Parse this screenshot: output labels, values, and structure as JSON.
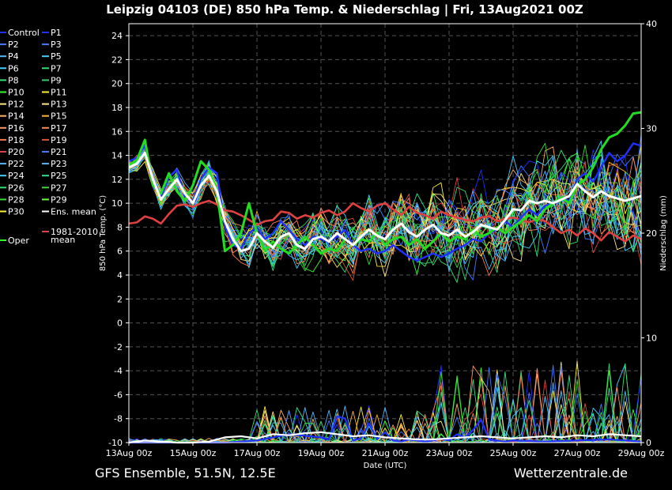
{
  "chart_data": {
    "type": "line",
    "title": "Leipzig 04103 (DE)  850 hPa Temp. & Niederschlag | Fri, 13Aug2021 00Z",
    "xlabel": "Date (UTC)",
    "ylabel": "850 hPa Temp. (°C)",
    "y2label": "Niederschlag (mm)",
    "ylim": [
      -10,
      25
    ],
    "y2lim": [
      0,
      40
    ],
    "xlim": [
      0,
      384
    ],
    "y_ticks": [
      -10,
      -8,
      -6,
      -4,
      -2,
      0,
      2,
      4,
      6,
      8,
      10,
      12,
      14,
      16,
      18,
      20,
      22,
      24
    ],
    "y2_ticks": [
      0,
      10,
      20,
      30,
      40
    ],
    "x_ticks": [
      {
        "hour": 0,
        "label": "13Aug 00z"
      },
      {
        "hour": 48,
        "label": "15Aug 00z"
      },
      {
        "hour": 96,
        "label": "17Aug 00z"
      },
      {
        "hour": 144,
        "label": "19Aug 00z"
      },
      {
        "hour": 192,
        "label": "21Aug 00z"
      },
      {
        "hour": 240,
        "label": "23Aug 00z"
      },
      {
        "hour": 288,
        "label": "25Aug 00z"
      },
      {
        "hour": 336,
        "label": "27Aug 00z"
      },
      {
        "hour": 384,
        "label": "29Aug 00z"
      }
    ],
    "grid": true,
    "legend_position": "left",
    "legend_col1": [
      {
        "label": "Control",
        "color": "#2030ff"
      },
      {
        "label": "P2",
        "color": "#3f7bff"
      },
      {
        "label": "P4",
        "color": "#4fb8ff"
      },
      {
        "label": "P6",
        "color": "#3fd0ff"
      },
      {
        "label": "P8",
        "color": "#30e070"
      },
      {
        "label": "P10",
        "color": "#33ff33"
      },
      {
        "label": "P12",
        "color": "#ffe680"
      },
      {
        "label": "P14",
        "color": "#ffb060"
      },
      {
        "label": "P16",
        "color": "#ff9966"
      },
      {
        "label": "P18",
        "color": "#ff7744"
      },
      {
        "label": "P20",
        "color": "#e04040"
      },
      {
        "label": "P22",
        "color": "#4fb8ff"
      },
      {
        "label": "P24",
        "color": "#3fd0ff"
      },
      {
        "label": "P26",
        "color": "#30e070"
      },
      {
        "label": "P28",
        "color": "#33dd33"
      },
      {
        "label": "P30",
        "color": "#ffee33"
      }
    ],
    "legend_col2": [
      {
        "label": "P1",
        "color": "#2030ff"
      },
      {
        "label": "P3",
        "color": "#3f7bff"
      },
      {
        "label": "P5",
        "color": "#3fd0ff"
      },
      {
        "label": "P7",
        "color": "#30e070"
      },
      {
        "label": "P9",
        "color": "#33cc66"
      },
      {
        "label": "P11",
        "color": "#ffee33"
      },
      {
        "label": "P13",
        "color": "#ffe680"
      },
      {
        "label": "P15",
        "color": "#ffb030"
      },
      {
        "label": "P17",
        "color": "#ff8855"
      },
      {
        "label": "P19",
        "color": "#e05030"
      },
      {
        "label": "P21",
        "color": "#3f7bff"
      },
      {
        "label": "P23",
        "color": "#4fb8ff"
      },
      {
        "label": "P25",
        "color": "#30e090"
      },
      {
        "label": "P27",
        "color": "#33dd33"
      },
      {
        "label": "P29",
        "color": "#66ff33"
      },
      {
        "label": "Ens. mean",
        "color": "#ffffff"
      }
    ],
    "legend_extra": [
      {
        "label": "Oper",
        "color": "#33ff33"
      },
      {
        "label": "1981-2010",
        "label2": "mean",
        "color": "#e04040"
      }
    ],
    "series_oper": {
      "name": "Oper",
      "color": "#22dd22",
      "x": [
        0,
        6,
        12,
        18,
        24,
        30,
        36,
        42,
        48,
        54,
        60,
        66,
        72,
        78,
        84,
        90,
        96,
        102,
        108,
        114,
        120,
        126,
        132,
        138,
        144,
        150,
        156,
        162,
        168,
        174,
        180,
        186,
        192,
        198,
        204,
        210,
        216,
        222,
        228,
        234,
        240,
        246,
        252,
        258,
        264,
        270,
        276,
        282,
        288,
        294,
        300,
        306,
        312,
        318,
        324,
        330,
        336,
        342,
        348,
        354,
        360,
        366,
        372,
        378,
        384
      ],
      "y": [
        13.2,
        13.6,
        15.3,
        11.5,
        10.8,
        12.5,
        11.0,
        10.2,
        11.5,
        13.5,
        12.8,
        11.0,
        6.0,
        6.5,
        7.5,
        10.0,
        7.5,
        6.0,
        6.8,
        6.2,
        5.8,
        6.5,
        7.2,
        6.5,
        5.8,
        6.2,
        6.0,
        7.0,
        6.5,
        7.0,
        6.8,
        7.5,
        6.5,
        7.0,
        7.2,
        6.5,
        7.0,
        6.2,
        6.8,
        7.5,
        6.8,
        7.2,
        7.0,
        7.8,
        7.2,
        7.5,
        8.0,
        7.5,
        8.0,
        8.5,
        9.0,
        8.5,
        9.5,
        10.0,
        10.5,
        10.0,
        11.5,
        12.0,
        13.0,
        14.5,
        15.5,
        15.8,
        16.5,
        17.5,
        17.6
      ]
    },
    "series_ens_mean": {
      "name": "Ens. mean",
      "color": "#ffffff",
      "x": [
        0,
        6,
        12,
        18,
        24,
        30,
        36,
        42,
        48,
        54,
        60,
        66,
        72,
        78,
        84,
        90,
        96,
        102,
        108,
        114,
        120,
        126,
        132,
        138,
        144,
        150,
        156,
        162,
        168,
        174,
        180,
        186,
        192,
        198,
        204,
        210,
        216,
        222,
        228,
        234,
        240,
        246,
        252,
        258,
        264,
        270,
        276,
        282,
        288,
        294,
        300,
        306,
        312,
        318,
        324,
        330,
        336,
        342,
        348,
        354,
        360,
        366,
        372,
        378,
        384
      ],
      "y": [
        13.0,
        13.3,
        14.2,
        12.0,
        10.3,
        11.2,
        12.0,
        10.8,
        10.0,
        11.5,
        12.3,
        11.0,
        8.5,
        7.0,
        6.0,
        6.2,
        7.5,
        6.8,
        6.3,
        7.2,
        7.5,
        6.5,
        6.2,
        7.0,
        7.2,
        6.8,
        7.5,
        7.0,
        6.5,
        7.2,
        7.8,
        7.3,
        7.0,
        7.8,
        8.3,
        7.6,
        7.2,
        7.8,
        8.2,
        7.5,
        7.3,
        7.8,
        7.2,
        7.6,
        8.2,
        8.0,
        7.8,
        8.6,
        9.5,
        9.4,
        10.2,
        10.0,
        10.2,
        10.0,
        10.3,
        10.6,
        11.6,
        11.0,
        10.5,
        11.0,
        10.6,
        10.4,
        10.2,
        10.4,
        10.6
      ]
    },
    "series_control": {
      "name": "Control",
      "color": "#2030ff",
      "x": [
        0,
        6,
        12,
        18,
        24,
        30,
        36,
        42,
        48,
        54,
        60,
        66,
        72,
        78,
        84,
        90,
        96,
        102,
        108,
        114,
        120,
        126,
        132,
        138,
        144,
        150,
        156,
        162,
        168,
        174,
        180,
        186,
        192,
        198,
        204,
        210,
        216,
        222,
        228,
        234,
        240,
        246,
        252,
        258,
        264,
        270,
        276,
        282,
        288,
        294,
        300,
        306,
        312,
        318,
        324,
        330,
        336,
        342,
        348,
        354,
        360,
        366,
        372,
        378,
        384
      ],
      "y": [
        13.5,
        13.8,
        14.8,
        11.8,
        10.5,
        12.2,
        12.8,
        10.5,
        10.2,
        12.0,
        13.0,
        12.5,
        8.0,
        6.5,
        6.2,
        7.5,
        8.0,
        7.0,
        7.5,
        8.5,
        7.8,
        7.0,
        6.5,
        7.2,
        7.0,
        6.8,
        7.2,
        7.8,
        6.5,
        6.0,
        6.2,
        5.8,
        6.0,
        6.5,
        6.0,
        5.5,
        5.2,
        5.5,
        5.8,
        5.5,
        5.8,
        6.2,
        6.5,
        7.0,
        6.8,
        7.5,
        7.8,
        8.5,
        8.0,
        8.8,
        9.5,
        9.0,
        9.8,
        10.0,
        10.5,
        10.2,
        12.0,
        12.5,
        11.8,
        13.0,
        14.2,
        13.5,
        14.0,
        15.0,
        14.8
      ]
    },
    "series_clim": {
      "name": "1981-2010 mean",
      "color": "#e04040",
      "x": [
        0,
        6,
        12,
        18,
        24,
        30,
        36,
        42,
        48,
        54,
        60,
        66,
        72,
        78,
        84,
        90,
        96,
        102,
        108,
        114,
        120,
        126,
        132,
        138,
        144,
        150,
        156,
        162,
        168,
        174,
        180,
        186,
        192,
        198,
        204,
        210,
        216,
        222,
        228,
        234,
        240,
        246,
        252,
        258,
        264,
        270,
        276,
        282,
        288,
        294,
        300,
        306,
        312,
        318,
        324,
        330,
        336,
        342,
        348,
        354,
        360,
        366,
        372,
        378,
        384
      ],
      "y": [
        8.3,
        8.4,
        8.9,
        8.7,
        8.3,
        9.1,
        9.8,
        9.9,
        9.7,
        10.0,
        10.2,
        9.9,
        9.4,
        9.3,
        9.0,
        8.6,
        8.2,
        8.5,
        8.6,
        9.3,
        9.2,
        8.7,
        9.0,
        8.8,
        9.2,
        9.4,
        9.0,
        9.3,
        10.0,
        9.6,
        9.3,
        9.8,
        10.0,
        9.5,
        9.0,
        9.7,
        9.2,
        9.0,
        8.7,
        9.3,
        9.0,
        8.8,
        8.6,
        8.5,
        8.8,
        8.9,
        8.5,
        8.7,
        8.8,
        8.6,
        8.4,
        8.7,
        8.5,
        8.0,
        7.5,
        7.8,
        7.3,
        7.9,
        7.5,
        6.9,
        7.6,
        7.2,
        6.8,
        7.3,
        7.0
      ]
    },
    "precip_control": {
      "name": "Control precipitation",
      "color": "#2030ff",
      "x": [
        0,
        24,
        48,
        72,
        96,
        120,
        144,
        150,
        156,
        162,
        168,
        174,
        180,
        186,
        192,
        198,
        204,
        210,
        216,
        222,
        228,
        234,
        240,
        246,
        252,
        258,
        264,
        270,
        276,
        282,
        288,
        312,
        336,
        360,
        384
      ],
      "y": [
        0,
        0,
        0,
        0,
        0.2,
        0.8,
        0.5,
        0.3,
        2.5,
        2.3,
        0.2,
        0.4,
        1.8,
        0.3,
        1.0,
        0.2,
        0.1,
        0.3,
        0.2,
        0.1,
        0.2,
        0.4,
        0.2,
        0.8,
        0.5,
        1.2,
        2.2,
        0.3,
        0.2,
        0.1,
        0.2,
        0.1,
        0.2,
        0.3,
        0.1
      ]
    },
    "precip_ens_mean": {
      "name": "Ens. mean precipitation",
      "color": "#ffffff",
      "x": [
        0,
        12,
        24,
        36,
        48,
        60,
        72,
        84,
        96,
        108,
        120,
        132,
        144,
        156,
        168,
        180,
        192,
        204,
        216,
        228,
        240,
        252,
        264,
        276,
        288,
        300,
        312,
        324,
        336,
        348,
        360,
        372,
        384
      ],
      "y": [
        0,
        0.2,
        0.1,
        0,
        0,
        0.1,
        0.5,
        0.6,
        0.4,
        0.8,
        0.7,
        0.9,
        1.0,
        0.8,
        0.6,
        0.7,
        0.5,
        0.4,
        0.3,
        0.3,
        0.4,
        0.5,
        0.6,
        0.5,
        0.4,
        0.5,
        0.6,
        0.5,
        0.7,
        0.6,
        0.8,
        0.7,
        0.6
      ]
    }
  },
  "footer": {
    "left": "GFS Ensemble, 51.5N, 12.5E",
    "right": "Wetterzentrale.de"
  }
}
